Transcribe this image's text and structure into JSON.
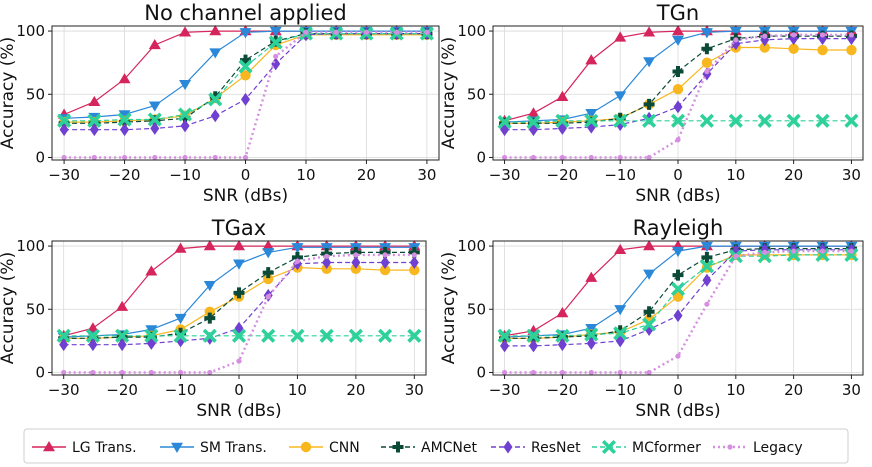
{
  "chart_data": [
    {
      "type": "line",
      "title": "No channel applied",
      "xlabel": "SNR (dBs)",
      "ylabel": "Accuracy (%)",
      "x": [
        -30,
        -25,
        -20,
        -15,
        -10,
        -5,
        0,
        5,
        10,
        15,
        20,
        25,
        30
      ],
      "xlim": [
        -32,
        32
      ],
      "ylim": [
        -2,
        104
      ],
      "xticks": [
        -30,
        -20,
        -10,
        0,
        10,
        20,
        30
      ],
      "yticks": [
        0,
        50,
        100
      ],
      "grid": true,
      "series": [
        {
          "name": "LG Trans.",
          "values": [
            34,
            44,
            62,
            89,
            99,
            100,
            100,
            100,
            100,
            100,
            100,
            100,
            100
          ]
        },
        {
          "name": "SM Trans.",
          "values": [
            31,
            32,
            34,
            41,
            58,
            83,
            99,
            100,
            100,
            100,
            100,
            100,
            100
          ]
        },
        {
          "name": "CNN",
          "values": [
            28,
            28,
            29,
            30,
            33,
            47,
            65,
            89,
            97,
            97,
            97,
            97,
            97
          ]
        },
        {
          "name": "AMCNet",
          "values": [
            27,
            27,
            28,
            29,
            31,
            48,
            77,
            92,
            98,
            98,
            98,
            98,
            98
          ]
        },
        {
          "name": "ResNet",
          "values": [
            22,
            22,
            22,
            23,
            25,
            33,
            46,
            74,
            97,
            98,
            98,
            98,
            98
          ]
        },
        {
          "name": "MCformer",
          "values": [
            29,
            29,
            30,
            30,
            34,
            46,
            72,
            91,
            98,
            98,
            98,
            98,
            98
          ]
        },
        {
          "name": "Legacy",
          "values": [
            0,
            0,
            0,
            0,
            0,
            0,
            0,
            80,
            99,
            99,
            99,
            99,
            99
          ]
        }
      ]
    },
    {
      "type": "line",
      "title": "TGn",
      "xlabel": "SNR (dBs)",
      "ylabel": "Accuracy (%)",
      "x": [
        -30,
        -25,
        -20,
        -15,
        -10,
        -5,
        0,
        5,
        10,
        15,
        20,
        25,
        30
      ],
      "xlim": [
        -32,
        32
      ],
      "ylim": [
        -2,
        104
      ],
      "xticks": [
        -30,
        -20,
        -10,
        0,
        10,
        20,
        30
      ],
      "yticks": [
        0,
        50,
        100
      ],
      "grid": true,
      "series": [
        {
          "name": "LG Trans.",
          "values": [
            29,
            35,
            48,
            77,
            95,
            99,
            100,
            100,
            100,
            100,
            100,
            100,
            100
          ]
        },
        {
          "name": "SM Trans.",
          "values": [
            28,
            29,
            30,
            35,
            49,
            76,
            93,
            99,
            100,
            100,
            100,
            100,
            100
          ]
        },
        {
          "name": "CNN",
          "values": [
            27,
            27,
            28,
            29,
            31,
            42,
            54,
            75,
            87,
            87,
            86,
            85,
            85
          ]
        },
        {
          "name": "AMCNet",
          "values": [
            27,
            27,
            27,
            28,
            31,
            42,
            68,
            86,
            94,
            96,
            96,
            96,
            96
          ]
        },
        {
          "name": "ResNet",
          "values": [
            22,
            22,
            23,
            24,
            26,
            31,
            40,
            66,
            90,
            93,
            94,
            94,
            94
          ]
        },
        {
          "name": "MCformer",
          "values": [
            28,
            28,
            29,
            29,
            29,
            29,
            29,
            29,
            29,
            29,
            29,
            29,
            29
          ]
        },
        {
          "name": "Legacy",
          "values": [
            0,
            0,
            0,
            0,
            0,
            0,
            14,
            68,
            93,
            96,
            97,
            97,
            97
          ]
        }
      ]
    },
    {
      "type": "line",
      "title": "TGax",
      "xlabel": "SNR (dBs)",
      "ylabel": "Accuracy (%)",
      "x": [
        -30,
        -25,
        -20,
        -15,
        -10,
        -5,
        0,
        5,
        10,
        15,
        20,
        25,
        30
      ],
      "xlim": [
        -32,
        32
      ],
      "ylim": [
        -2,
        104
      ],
      "xticks": [
        -30,
        -20,
        -10,
        0,
        10,
        20,
        30
      ],
      "yticks": [
        0,
        50,
        100
      ],
      "grid": true,
      "series": [
        {
          "name": "LG Trans.",
          "values": [
            29,
            35,
            52,
            80,
            98,
            100,
            100,
            100,
            100,
            100,
            100,
            100,
            100
          ]
        },
        {
          "name": "SM Trans.",
          "values": [
            28,
            29,
            30,
            34,
            43,
            69,
            86,
            95,
            99,
            99,
            99,
            99,
            99
          ]
        },
        {
          "name": "CNN",
          "values": [
            27,
            27,
            28,
            29,
            34,
            48,
            60,
            74,
            83,
            82,
            82,
            81,
            81
          ]
        },
        {
          "name": "AMCNet",
          "values": [
            27,
            27,
            28,
            28,
            31,
            43,
            63,
            79,
            91,
            94,
            95,
            95,
            95
          ]
        },
        {
          "name": "ResNet",
          "values": [
            22,
            22,
            22,
            23,
            25,
            27,
            35,
            61,
            86,
            87,
            87,
            87,
            87
          ]
        },
        {
          "name": "MCformer",
          "values": [
            29,
            29,
            29,
            29,
            29,
            29,
            29,
            29,
            29,
            29,
            29,
            29,
            29
          ]
        },
        {
          "name": "Legacy",
          "values": [
            0,
            0,
            0,
            0,
            0,
            0,
            9,
            60,
            88,
            92,
            93,
            93,
            93
          ]
        }
      ]
    },
    {
      "type": "line",
      "title": "Rayleigh",
      "xlabel": "SNR (dBs)",
      "ylabel": "Accuracy (%)",
      "x": [
        -30,
        -25,
        -20,
        -15,
        -10,
        -5,
        0,
        5,
        10,
        15,
        20,
        25,
        30
      ],
      "xlim": [
        -32,
        32
      ],
      "ylim": [
        -2,
        104
      ],
      "xticks": [
        -30,
        -20,
        -10,
        0,
        10,
        20,
        30
      ],
      "yticks": [
        0,
        50,
        100
      ],
      "grid": true,
      "series": [
        {
          "name": "LG Trans.",
          "values": [
            29,
            33,
            47,
            75,
            97,
            100,
            100,
            100,
            100,
            100,
            100,
            100,
            100
          ]
        },
        {
          "name": "SM Trans.",
          "values": [
            28,
            29,
            30,
            35,
            50,
            78,
            96,
            100,
            100,
            100,
            100,
            100,
            100
          ]
        },
        {
          "name": "CNN",
          "values": [
            27,
            27,
            28,
            30,
            32,
            42,
            60,
            83,
            93,
            93,
            93,
            93,
            93
          ]
        },
        {
          "name": "AMCNet",
          "values": [
            27,
            27,
            28,
            29,
            33,
            48,
            77,
            91,
            97,
            98,
            98,
            98,
            98
          ]
        },
        {
          "name": "ResNet",
          "values": [
            21,
            21,
            22,
            23,
            25,
            34,
            45,
            73,
            96,
            97,
            97,
            97,
            97
          ]
        },
        {
          "name": "MCformer",
          "values": [
            29,
            29,
            29,
            30,
            31,
            38,
            66,
            84,
            92,
            92,
            93,
            93,
            93
          ]
        },
        {
          "name": "Legacy",
          "values": [
            0,
            0,
            0,
            0,
            0,
            0,
            13,
            54,
            92,
            95,
            96,
            96,
            96
          ]
        }
      ]
    }
  ],
  "legend": {
    "placement": "bottom",
    "entries": [
      "LG Trans.",
      "SM Trans.",
      "CNN",
      "AMCNet",
      "ResNet",
      "MCformer",
      "Legacy"
    ]
  },
  "series_styles": {
    "LG Trans.": {
      "color": "#d6245c",
      "marker": "triangle-up-icon",
      "dash": "solid"
    },
    "SM Trans.": {
      "color": "#2b88d8",
      "marker": "triangle-down-icon",
      "dash": "solid"
    },
    "CNN": {
      "color": "#f8b71e",
      "marker": "circle-icon",
      "dash": "solid"
    },
    "AMCNet": {
      "color": "#0a4a37",
      "marker": "plus-icon",
      "dash": "dashed"
    },
    "ResNet": {
      "color": "#7040d0",
      "marker": "diamond-icon",
      "dash": "dashed"
    },
    "MCformer": {
      "color": "#2ed19a",
      "marker": "x-icon",
      "dash": "dashed"
    },
    "Legacy": {
      "color": "#d68fe0",
      "marker": "dot-icon",
      "dash": "dotted"
    }
  }
}
